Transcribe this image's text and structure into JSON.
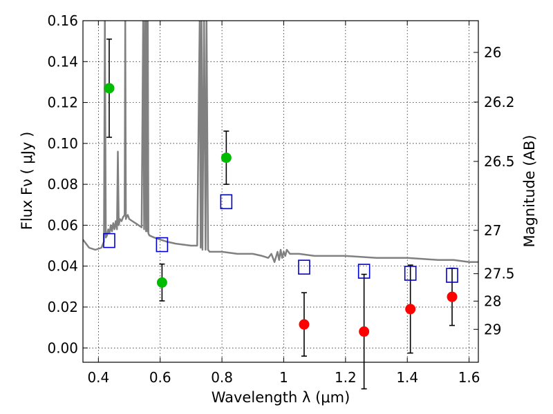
{
  "chart_data": {
    "type": "scatter",
    "xlabel": "Wavelength  λ (μm)",
    "ylabel": "Flux  Fν  ( μJy )",
    "ylabel_right": "Magnitude (AB)",
    "xlim": [
      0.35,
      1.63
    ],
    "ylim": [
      -0.007,
      0.16
    ],
    "grid": true,
    "xticks": [
      {
        "value": 0.4,
        "label": "0.4"
      },
      {
        "value": 0.6,
        "label": "0.6"
      },
      {
        "value": 0.8,
        "label": "0.8"
      },
      {
        "value": 1.0,
        "label": "1"
      },
      {
        "value": 1.2,
        "label": "1.2"
      },
      {
        "value": 1.4,
        "label": "1.4"
      },
      {
        "value": 1.6,
        "label": "1.6"
      }
    ],
    "yticks": [
      {
        "value": 0.0,
        "label": "0.00"
      },
      {
        "value": 0.02,
        "label": "0.02"
      },
      {
        "value": 0.04,
        "label": "0.04"
      },
      {
        "value": 0.06,
        "label": "0.06"
      },
      {
        "value": 0.08,
        "label": "0.08"
      },
      {
        "value": 0.1,
        "label": "0.10"
      },
      {
        "value": 0.12,
        "label": "0.12"
      },
      {
        "value": 0.14,
        "label": "0.14"
      },
      {
        "value": 0.16,
        "label": "0.16"
      }
    ],
    "right_ticks": [
      {
        "label": "26",
        "flux": 0.1445
      },
      {
        "label": "26.2",
        "flux": 0.1202
      },
      {
        "label": "26.5",
        "flux": 0.0912
      },
      {
        "label": "27",
        "flux": 0.0575
      },
      {
        "label": "27.5",
        "flux": 0.0363
      },
      {
        "label": "28",
        "flux": 0.0229
      },
      {
        "label": "29",
        "flux": 0.0091
      }
    ],
    "series": [
      {
        "color": "#00bb00",
        "marker": "circle",
        "points": [
          {
            "x": 0.435,
            "y": 0.127,
            "yerr": 0.024
          },
          {
            "x": 0.606,
            "y": 0.032,
            "yerr": 0.009
          },
          {
            "x": 0.814,
            "y": 0.093,
            "yerr": 0.013
          }
        ]
      },
      {
        "color": "#ff0000",
        "marker": "circle",
        "points": [
          {
            "x": 1.066,
            "y": 0.0115,
            "yerr": 0.0155
          },
          {
            "x": 1.26,
            "y": 0.008,
            "yerr": 0.028
          },
          {
            "x": 1.41,
            "y": 0.019,
            "yerr": 0.0215
          },
          {
            "x": 1.545,
            "y": 0.025,
            "yerr": 0.014
          }
        ]
      },
      {
        "color": "#0000cc",
        "marker": "open-square",
        "points": [
          {
            "x": 0.435,
            "y": 0.0525
          },
          {
            "x": 0.606,
            "y": 0.0505
          },
          {
            "x": 0.814,
            "y": 0.0715
          },
          {
            "x": 1.066,
            "y": 0.0395
          },
          {
            "x": 1.26,
            "y": 0.0375
          },
          {
            "x": 1.41,
            "y": 0.0365
          },
          {
            "x": 1.545,
            "y": 0.0355
          }
        ]
      }
    ],
    "template_spectrum": {
      "color": "#808080",
      "x": [
        0.35,
        0.37,
        0.39,
        0.41,
        0.418,
        0.421,
        0.424,
        0.428,
        0.432,
        0.436,
        0.44,
        0.444,
        0.448,
        0.452,
        0.456,
        0.46,
        0.463,
        0.466,
        0.47,
        0.475,
        0.48,
        0.485,
        0.487,
        0.489,
        0.491,
        0.495,
        0.5,
        0.51,
        0.52,
        0.53,
        0.54,
        0.545,
        0.548,
        0.551,
        0.554,
        0.556,
        0.558,
        0.56,
        0.562,
        0.565,
        0.58,
        0.6,
        0.62,
        0.65,
        0.7,
        0.72,
        0.728,
        0.731,
        0.734,
        0.737,
        0.742,
        0.747,
        0.75,
        0.755,
        0.76,
        0.8,
        0.85,
        0.9,
        0.93,
        0.95,
        0.96,
        0.97,
        0.98,
        0.985,
        0.99,
        0.995,
        1.0,
        1.005,
        1.01,
        1.02,
        1.05,
        1.1,
        1.2,
        1.3,
        1.4,
        1.5,
        1.55,
        1.6,
        1.63
      ],
      "y": [
        0.053,
        0.049,
        0.048,
        0.049,
        0.052,
        0.16,
        0.054,
        0.055,
        0.058,
        0.056,
        0.06,
        0.057,
        0.061,
        0.058,
        0.062,
        0.058,
        0.096,
        0.06,
        0.063,
        0.062,
        0.064,
        0.065,
        0.16,
        0.063,
        0.064,
        0.065,
        0.063,
        0.062,
        0.061,
        0.06,
        0.059,
        0.16,
        0.058,
        0.16,
        0.057,
        0.16,
        0.057,
        0.16,
        0.056,
        0.055,
        0.054,
        0.053,
        0.052,
        0.051,
        0.05,
        0.05,
        0.16,
        0.049,
        0.16,
        0.048,
        0.16,
        0.048,
        0.16,
        0.048,
        0.047,
        0.047,
        0.046,
        0.046,
        0.045,
        0.044,
        0.046,
        0.042,
        0.047,
        0.043,
        0.048,
        0.044,
        0.047,
        0.045,
        0.048,
        0.046,
        0.046,
        0.045,
        0.045,
        0.044,
        0.044,
        0.043,
        0.043,
        0.042,
        0.042
      ]
    }
  }
}
